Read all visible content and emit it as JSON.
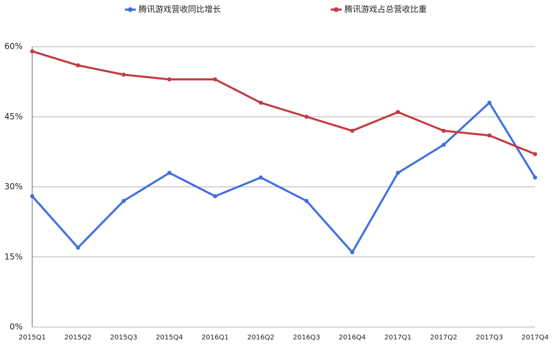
{
  "chart_data": {
    "type": "line",
    "categories": [
      "2015Q1",
      "2015Q2",
      "2015Q3",
      "2015Q4",
      "2016Q1",
      "2016Q2",
      "2016Q3",
      "2016Q4",
      "2017Q1",
      "2017Q2",
      "2017Q3",
      "2017Q4"
    ],
    "series": [
      {
        "name": "腾讯游戏营收同比增长",
        "color": "#3f6fe0",
        "values": [
          28,
          17,
          27,
          33,
          28,
          32,
          27,
          16,
          33,
          39,
          48,
          32
        ]
      },
      {
        "name": "腾讯游戏占总营收比重",
        "color": "#c43a42",
        "values": [
          59,
          56,
          54,
          53,
          53,
          48,
          45,
          42,
          46,
          42,
          41,
          37
        ]
      }
    ],
    "ylim": [
      0,
      60
    ],
    "yticks": [
      {
        "value": 0,
        "label": "0%"
      },
      {
        "value": 15,
        "label": "15%"
      },
      {
        "value": 30,
        "label": "30%"
      },
      {
        "value": 45,
        "label": "45%"
      },
      {
        "value": 60,
        "label": "60%"
      }
    ],
    "grid": true,
    "legend": "top"
  }
}
